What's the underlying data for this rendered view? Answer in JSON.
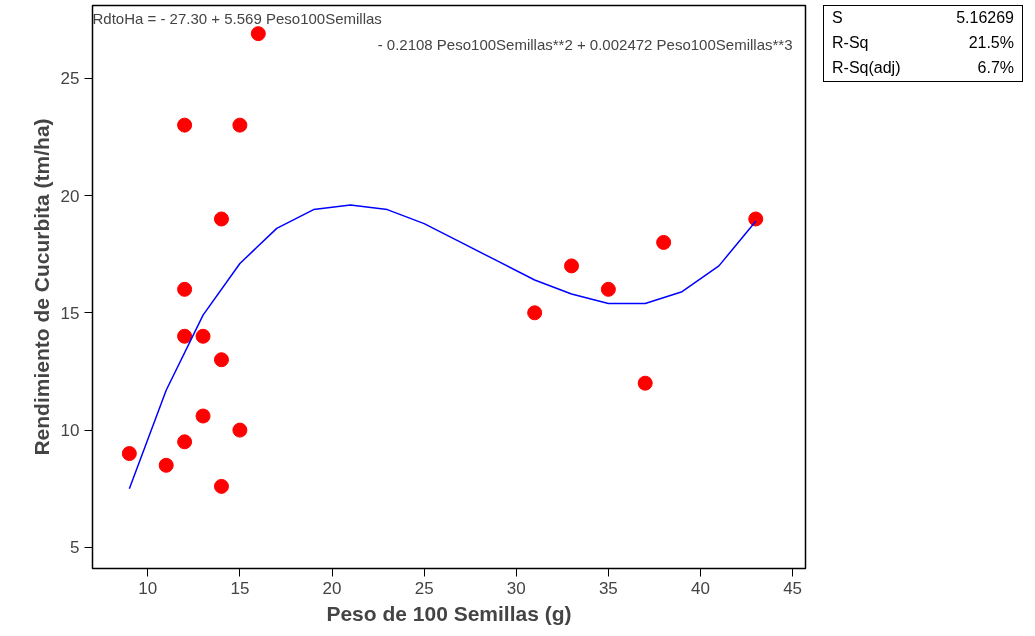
{
  "chart_data": {
    "type": "scatter",
    "xlabel": "Peso de 100 Semillas (g)",
    "ylabel": "Rendimiento de Cucurbita (tm/ha)",
    "xlim": [
      7,
      45.7
    ],
    "ylim": [
      4.1,
      28.1
    ],
    "xticks": [
      10,
      15,
      20,
      25,
      30,
      35,
      40,
      45
    ],
    "yticks": [
      5,
      10,
      15,
      20,
      25
    ],
    "grid": false,
    "series": [
      {
        "color": "#ff0000",
        "marker": "circle",
        "x": [
          9,
          11,
          12,
          12,
          12,
          12,
          13,
          13,
          14,
          14,
          14,
          15,
          15,
          16,
          31,
          33,
          35,
          37,
          38,
          43
        ],
        "values": [
          9,
          8.5,
          23,
          16,
          14,
          9.5,
          14,
          10.6,
          19,
          13,
          7.6,
          23,
          10,
          26.9,
          15,
          17,
          16,
          12,
          18,
          19
        ]
      },
      {
        "type": "line",
        "color": "#0000ff",
        "line_style": "solid",
        "x": [
          9,
          11,
          13,
          15,
          17,
          19,
          21,
          23,
          25,
          27,
          29,
          31,
          33,
          35,
          37,
          39,
          41,
          43
        ],
        "values": [
          7.5,
          11.7,
          14.9,
          17.1,
          18.6,
          19.4,
          19.6,
          19.4,
          18.8,
          18.0,
          17.2,
          16.4,
          15.8,
          15.4,
          15.4,
          15.9,
          17.0,
          18.9
        ]
      }
    ],
    "annotations": [
      "RdtoHa =  - 27.30 + 5.569 Peso100Semillas",
      "- 0.2108 Peso100Semillas**2 + 0.002472 Peso100Semillas**3",
      "S",
      "5.16269",
      "R-Sq",
      "21.5%",
      "R-Sq(adj)",
      "6.7%"
    ]
  }
}
